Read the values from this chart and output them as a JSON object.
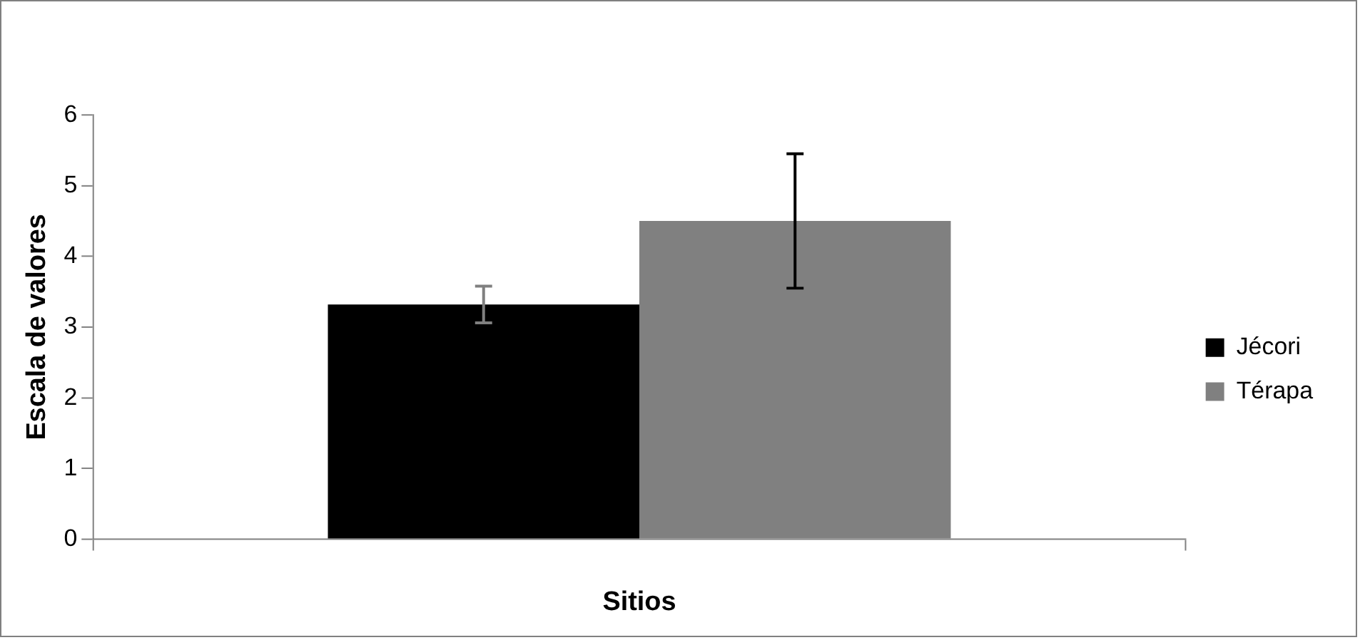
{
  "chart_data": {
    "type": "bar",
    "xlabel": "Sitios",
    "ylabel": "Escala de valores",
    "categories": [
      null
    ],
    "series": [
      {
        "name": "Jécori",
        "color": "#000000",
        "values": [
          3.32
        ],
        "errors": [
          0.26
        ]
      },
      {
        "name": "Térapa",
        "color": "#808080",
        "values": [
          4.5
        ],
        "errors": [
          0.95
        ]
      }
    ],
    "ylim": [
      0,
      6
    ],
    "yticks": [
      0,
      1,
      2,
      3,
      4,
      5,
      6
    ],
    "grid": false,
    "legend": "right"
  }
}
